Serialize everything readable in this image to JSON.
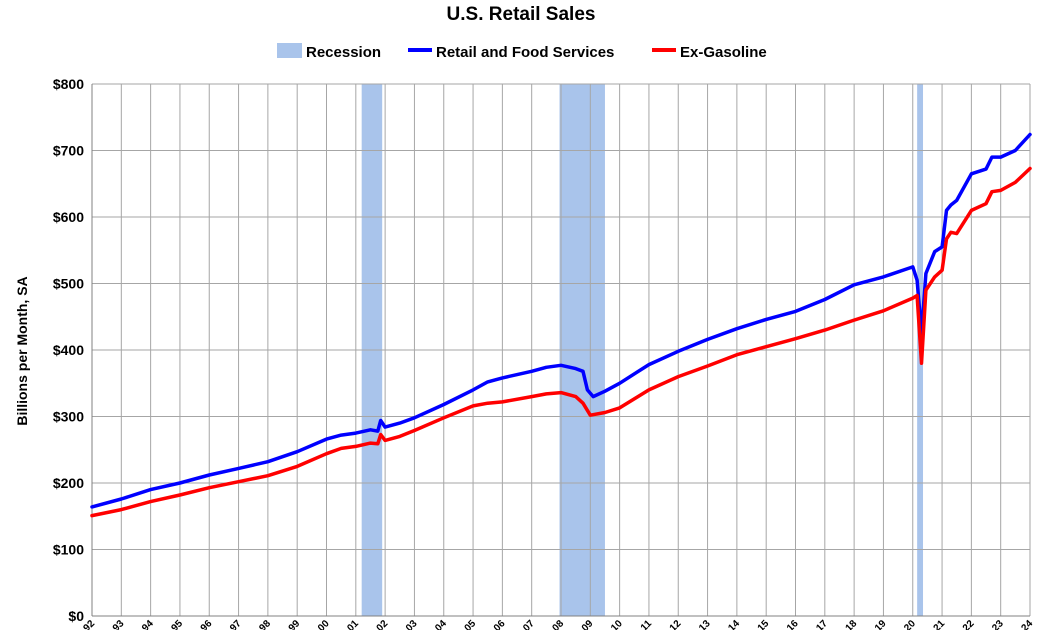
{
  "chart_data": {
    "type": "line",
    "title": "U.S. Retail Sales",
    "ylabel": "Billions per Month, SA",
    "xlabel": "",
    "xlim": [
      1992,
      2024
    ],
    "ylim": [
      0,
      800
    ],
    "y_ticks": [
      "$0",
      "$100",
      "$200",
      "$300",
      "$400",
      "$500",
      "$600",
      "$700",
      "$800"
    ],
    "x_ticks": [
      "92",
      "93",
      "94",
      "95",
      "96",
      "97",
      "98",
      "99",
      "00",
      "01",
      "02",
      "03",
      "04",
      "05",
      "06",
      "07",
      "08",
      "09",
      "10",
      "11",
      "12",
      "13",
      "14",
      "15",
      "16",
      "17",
      "18",
      "19",
      "20",
      "21",
      "22",
      "23",
      "24"
    ],
    "grid": true,
    "legend_position": "top-center",
    "legend": [
      "Recession",
      "Retail and Food Services",
      "Ex-Gasoline"
    ],
    "recessions": [
      {
        "start": 2001.2,
        "end": 2001.9
      },
      {
        "start": 2007.95,
        "end": 2009.5
      },
      {
        "start": 2020.15,
        "end": 2020.35
      }
    ],
    "colors": {
      "recession": "#a9c4eb",
      "retail": "#0000ff",
      "ex_gasoline": "#ff0000",
      "grid": "#a6a6a6"
    },
    "series": [
      {
        "name": "Retail and Food Services",
        "key": "retail",
        "x": [
          1992.0,
          1993.0,
          1994.0,
          1995.0,
          1996.0,
          1997.0,
          1998.0,
          1999.0,
          2000.0,
          2000.5,
          2001.0,
          2001.5,
          2001.75,
          2001.85,
          2002.0,
          2002.5,
          2003.0,
          2004.0,
          2005.0,
          2005.5,
          2005.75,
          2006.0,
          2007.0,
          2007.5,
          2008.0,
          2008.5,
          2008.75,
          2008.9,
          2009.1,
          2009.5,
          2010.0,
          2011.0,
          2012.0,
          2013.0,
          2014.0,
          2015.0,
          2016.0,
          2017.0,
          2018.0,
          2019.0,
          2020.0,
          2020.15,
          2020.3,
          2020.45,
          2020.75,
          2021.0,
          2021.15,
          2021.3,
          2021.5,
          2022.0,
          2022.5,
          2022.7,
          2023.0,
          2023.5,
          2024.0
        ],
        "y": [
          164,
          176,
          190,
          200,
          212,
          222,
          232,
          247,
          266,
          272,
          275,
          280,
          278,
          294,
          284,
          290,
          298,
          318,
          340,
          352,
          355,
          358,
          368,
          374,
          377,
          372,
          368,
          340,
          330,
          338,
          350,
          378,
          398,
          416,
          432,
          446,
          458,
          476,
          498,
          510,
          525,
          505,
          425,
          515,
          548,
          555,
          610,
          618,
          625,
          665,
          672,
          690,
          690,
          700,
          724
        ]
      },
      {
        "name": "Ex-Gasoline",
        "key": "ex_gasoline",
        "x": [
          1992.0,
          1993.0,
          1994.0,
          1995.0,
          1996.0,
          1997.0,
          1998.0,
          1999.0,
          2000.0,
          2000.5,
          2001.0,
          2001.5,
          2001.75,
          2001.85,
          2002.0,
          2002.5,
          2003.0,
          2004.0,
          2005.0,
          2005.5,
          2006.0,
          2007.0,
          2007.5,
          2008.0,
          2008.5,
          2008.75,
          2009.0,
          2009.5,
          2010.0,
          2011.0,
          2012.0,
          2013.0,
          2014.0,
          2015.0,
          2016.0,
          2017.0,
          2018.0,
          2019.0,
          2020.0,
          2020.15,
          2020.3,
          2020.45,
          2020.75,
          2021.0,
          2021.15,
          2021.3,
          2021.5,
          2022.0,
          2022.5,
          2022.7,
          2023.0,
          2023.5,
          2024.0
        ],
        "y": [
          151,
          160,
          172,
          182,
          193,
          202,
          211,
          225,
          244,
          252,
          255,
          260,
          259,
          273,
          264,
          270,
          279,
          298,
          316,
          320,
          322,
          330,
          334,
          336,
          330,
          320,
          302,
          306,
          313,
          340,
          360,
          376,
          393,
          405,
          417,
          430,
          445,
          459,
          478,
          482,
          380,
          490,
          510,
          520,
          567,
          577,
          575,
          610,
          620,
          638,
          640,
          652,
          673
        ]
      }
    ]
  }
}
